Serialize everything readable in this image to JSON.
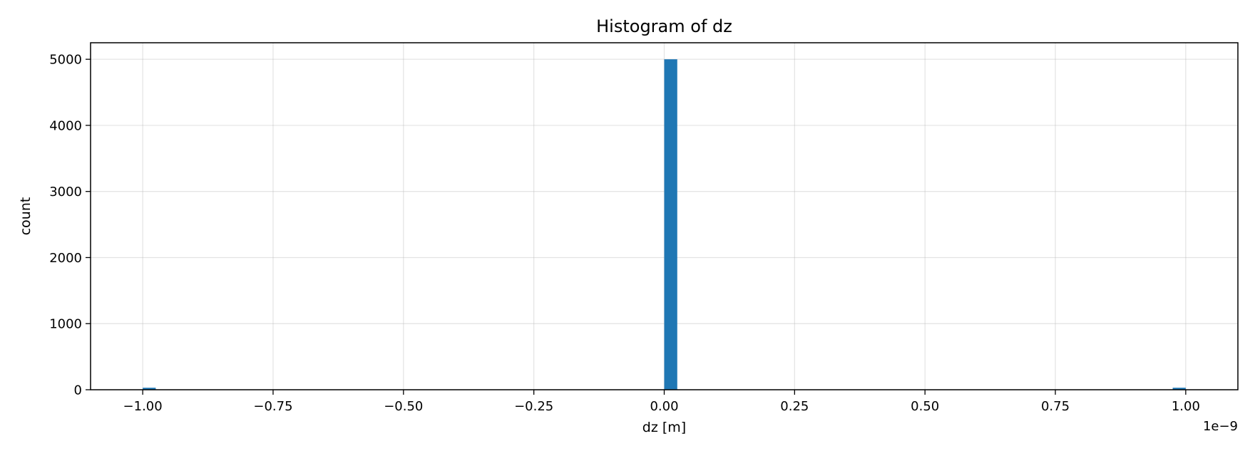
{
  "chart_data": {
    "type": "bar",
    "title": "Histogram of dz",
    "xlabel": "dz [m]",
    "ylabel": "count",
    "x_offset_label": "1e−9",
    "x_tick_labels": [
      "−1.00",
      "−0.75",
      "−0.50",
      "−0.25",
      "0.00",
      "0.25",
      "0.50",
      "0.75",
      "1.00"
    ],
    "x_ticks": [
      -1.0,
      -0.75,
      -0.5,
      -0.25,
      0.0,
      0.25,
      0.5,
      0.75,
      1.0
    ],
    "y_ticks": [
      0,
      1000,
      2000,
      3000,
      4000,
      5000
    ],
    "y_tick_labels": [
      "0",
      "1000",
      "2000",
      "3000",
      "4000",
      "5000"
    ],
    "xlim": [
      -1.1,
      1.1
    ],
    "ylim": [
      0,
      5250
    ],
    "grid": true,
    "bar_color": "#1f77b4",
    "bins": [
      {
        "x0": -1.0,
        "x1": -0.975,
        "count": 30
      },
      {
        "x0": 0.0,
        "x1": 0.025,
        "count": 5000
      },
      {
        "x0": 0.975,
        "x1": 1.0,
        "count": 30
      }
    ]
  }
}
